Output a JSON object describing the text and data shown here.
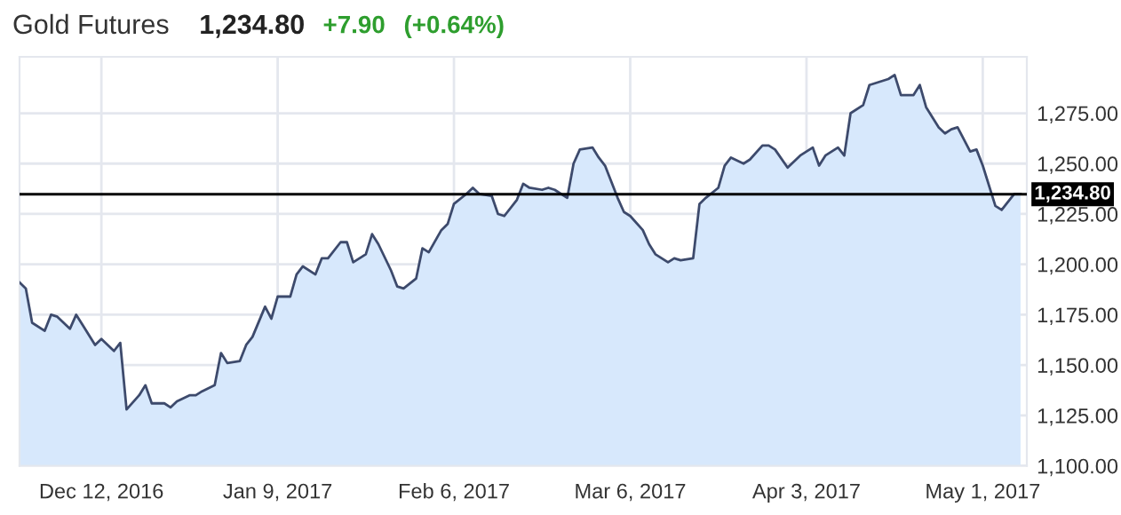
{
  "chart_data": {
    "type": "area",
    "title": "Gold Futures",
    "annotations": [
      "1,234.80",
      "+7.90",
      "(+0.64%)"
    ],
    "x": [
      "2016-11-29",
      "2016-11-30",
      "2016-12-01",
      "2016-12-03",
      "2016-12-04",
      "2016-12-05",
      "2016-12-07",
      "2016-12-08",
      "2016-12-09",
      "2016-12-11",
      "2016-12-12",
      "2016-12-14",
      "2016-12-15",
      "2016-12-16",
      "2016-12-18",
      "2016-12-19",
      "2016-12-20",
      "2016-12-22",
      "2016-12-23",
      "2016-12-24",
      "2016-12-26",
      "2016-12-27",
      "2016-12-28",
      "2016-12-30",
      "2016-12-31",
      "2017-01-01",
      "2017-01-03",
      "2017-01-04",
      "2017-01-05",
      "2017-01-07",
      "2017-01-08",
      "2017-01-09",
      "2017-01-11",
      "2017-01-12",
      "2017-01-13",
      "2017-01-15",
      "2017-01-16",
      "2017-01-17",
      "2017-01-19",
      "2017-01-20",
      "2017-01-21",
      "2017-01-23",
      "2017-01-24",
      "2017-01-25",
      "2017-01-27",
      "2017-01-28",
      "2017-01-29",
      "2017-01-31",
      "2017-02-01",
      "2017-02-02",
      "2017-02-04",
      "2017-02-05",
      "2017-02-06",
      "2017-02-08",
      "2017-02-09",
      "2017-02-10",
      "2017-02-12",
      "2017-02-13",
      "2017-02-14",
      "2017-02-16",
      "2017-02-17",
      "2017-02-18",
      "2017-02-20",
      "2017-02-21",
      "2017-02-22",
      "2017-02-24",
      "2017-02-25",
      "2017-02-26",
      "2017-02-28",
      "2017-03-01",
      "2017-03-02",
      "2017-03-04",
      "2017-03-05",
      "2017-03-06",
      "2017-03-08",
      "2017-03-09",
      "2017-03-10",
      "2017-03-12",
      "2017-03-13",
      "2017-03-14",
      "2017-03-16",
      "2017-03-17",
      "2017-03-18",
      "2017-03-20",
      "2017-03-21",
      "2017-03-22",
      "2017-03-24",
      "2017-03-25",
      "2017-03-27",
      "2017-03-28",
      "2017-03-29",
      "2017-03-31",
      "2017-04-01",
      "2017-04-02",
      "2017-04-04",
      "2017-04-05",
      "2017-04-06",
      "2017-04-08",
      "2017-04-09",
      "2017-04-10",
      "2017-04-12",
      "2017-04-13",
      "2017-04-14",
      "2017-04-16",
      "2017-04-17",
      "2017-04-18",
      "2017-04-20",
      "2017-04-21",
      "2017-04-22",
      "2017-04-24",
      "2017-04-25",
      "2017-04-26",
      "2017-04-27",
      "2017-04-29",
      "2017-04-30",
      "2017-05-01",
      "2017-05-03",
      "2017-05-04",
      "2017-05-06",
      "2017-05-07"
    ],
    "series": [
      {
        "color": "#d7e8fc",
        "values": [
          1191,
          1188,
          1171,
          1167,
          1175,
          1174,
          1168,
          1175,
          1170,
          1160,
          1163,
          1157,
          1161,
          1128,
          1135,
          1140,
          1131,
          1131,
          1129,
          1132,
          1135,
          1135,
          1137,
          1140,
          1156,
          1151,
          1152,
          1160,
          1164,
          1179,
          1173,
          1184,
          1184,
          1195,
          1199,
          1195,
          1203,
          1203,
          1211,
          1211,
          1201,
          1205,
          1215,
          1210,
          1197,
          1189,
          1188,
          1193,
          1208,
          1206,
          1217,
          1220,
          1230,
          1235,
          1238,
          1235,
          1234,
          1225,
          1224,
          1232,
          1240,
          1238,
          1237,
          1238,
          1237,
          1233,
          1250,
          1257,
          1258,
          1253,
          1249,
          1233,
          1226,
          1224,
          1217,
          1210,
          1205,
          1201,
          1203,
          1202,
          1203,
          1230,
          1233,
          1238,
          1249,
          1253,
          1250,
          1252,
          1259,
          1259,
          1257,
          1248,
          1251,
          1254,
          1258,
          1249,
          1254,
          1258,
          1254,
          1275,
          1279,
          1289,
          1290,
          1292,
          1294,
          1284,
          1284,
          1289,
          1278,
          1268,
          1265,
          1267,
          1268,
          1256,
          1257,
          1249,
          1229,
          1227,
          1235,
          1235
        ]
      }
    ],
    "xlim": [
      "2016-11-29",
      "2017-05-08"
    ],
    "xticks": [
      {
        "value": "2016-12-12",
        "label": "Dec 12, 2016"
      },
      {
        "value": "2017-01-09",
        "label": "Jan 9, 2017"
      },
      {
        "value": "2017-02-06",
        "label": "Feb 6, 2017"
      },
      {
        "value": "2017-03-06",
        "label": "Mar 6, 2017"
      },
      {
        "value": "2017-04-03",
        "label": "Apr 3, 2017"
      },
      {
        "value": "2017-05-01",
        "label": "May 1, 2017"
      }
    ],
    "ylim": [
      1100,
      1303
    ],
    "yticks": [
      {
        "value": 1100,
        "label": "1,100.00"
      },
      {
        "value": 1125,
        "label": "1,125.00"
      },
      {
        "value": 1150,
        "label": "1,150.00"
      },
      {
        "value": 1175,
        "label": "1,175.00"
      },
      {
        "value": 1200,
        "label": "1,200.00"
      },
      {
        "value": 1225,
        "label": "1,225.00"
      },
      {
        "value": 1250,
        "label": "1,250.00"
      },
      {
        "value": 1275,
        "label": "1,275.00"
      }
    ],
    "ref_lines": [
      {
        "axis": "y",
        "value": 1234.8,
        "label": "1,234.80",
        "color": "#000000"
      }
    ],
    "grid": true,
    "legend": false
  }
}
